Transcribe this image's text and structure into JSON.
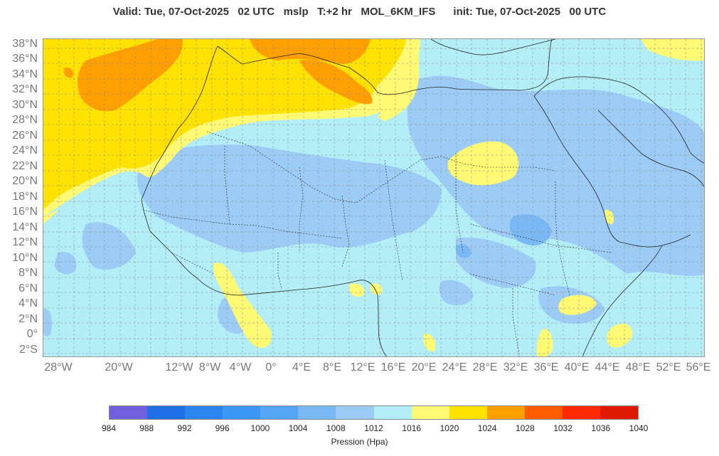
{
  "header": {
    "title": "Valid: Tue, 07-Oct-2025   02 UTC   mslp   T:+2 hr   MOL_6KM_IFS      init: Tue, 07-Oct-2025   00 UTC"
  },
  "map": {
    "variable": "mslp",
    "latitude_labels": [
      "38°N",
      "36°N",
      "34°N",
      "32°N",
      "30°N",
      "28°N",
      "26°N",
      "24°N",
      "22°N",
      "20°N",
      "18°N",
      "16°N",
      "14°N",
      "12°N",
      "10°N",
      "8°N",
      "6°N",
      "4°N",
      "2°N",
      "0°",
      "2°S"
    ],
    "longitude_labels": [
      "28°W",
      "20°W",
      "12°W",
      "8°W",
      "4°W",
      "0°",
      "4°E",
      "8°E",
      "12°E",
      "16°E",
      "20°E",
      "24°E",
      "28°E",
      "32°E",
      "36°E",
      "40°E",
      "44°E",
      "48°E",
      "52°E",
      "56°E"
    ],
    "colors": {
      "ocean_base": "#b3eef7",
      "border": "#333333",
      "grid": "#888888"
    }
  },
  "colorbar": {
    "ticks": [
      "984",
      "988",
      "992",
      "996",
      "1000",
      "1004",
      "1008",
      "1012",
      "1016",
      "1020",
      "1024",
      "1028",
      "1032",
      "1036",
      "1040"
    ],
    "colors": [
      "#7060dd",
      "#1e6ee6",
      "#2d86f0",
      "#3b96f4",
      "#55a6f2",
      "#7ab8f4",
      "#9cccf6",
      "#b3eef7",
      "#fff974",
      "#ffe200",
      "#ff9f00",
      "#ff5c00",
      "#ff2a00",
      "#e01a00"
    ],
    "label": "Pression (Hpa)"
  }
}
